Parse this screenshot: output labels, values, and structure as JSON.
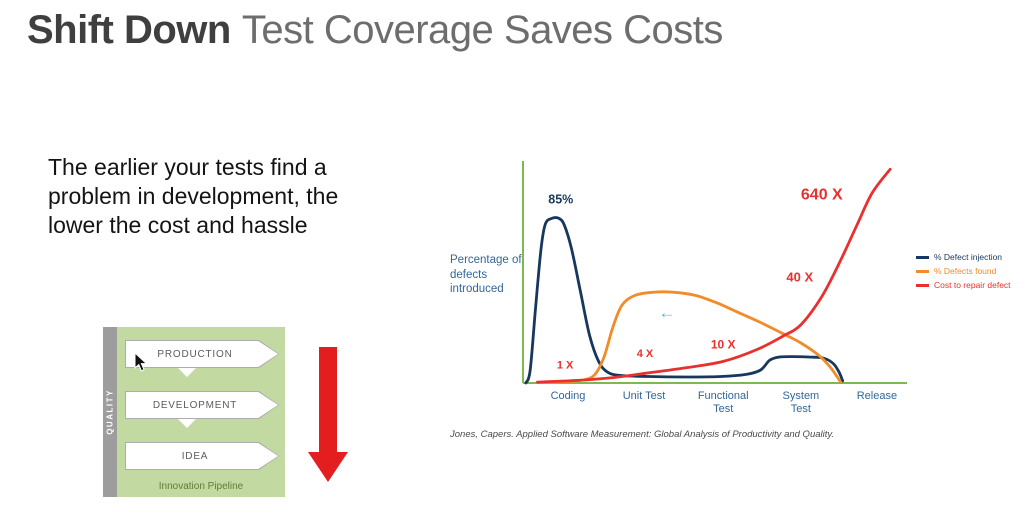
{
  "slide": {
    "title_bold": "Shift Down",
    "title_rest": "Test Coverage Saves Costs",
    "body_lines": [
      "The earlier your tests find a",
      "problem in development, the",
      "lower the cost and hassle"
    ]
  },
  "pipeline": {
    "quality_label": "QUALITY",
    "stages": [
      "PRODUCTION",
      "DEVELOPMENT",
      "IDEA"
    ],
    "caption": "Innovation Pipeline"
  },
  "chart": {
    "y_axis_label": "Percentage of defects introduced",
    "axis_color": "#7cb950",
    "label_color": "#336699",
    "citation": "Jones, Capers. Applied Software Measurement: Global Analysis of Productivity and Quality."
  },
  "chart_data": {
    "type": "line",
    "title": "",
    "x_categories": [
      "Coding",
      "Unit Test",
      "Functional Test",
      "System Test",
      "Release"
    ],
    "y_scale": "normalized 0-1 of plot height (y axis has no numeric ticks)",
    "legend_position": "right",
    "defect_injection_peak": "85%",
    "cost_multipliers": {
      "Coding": "1 X",
      "Unit Test": "4 X",
      "Functional Test": "10 X",
      "System Test": "40 X",
      "Release": "640 X"
    },
    "x_axis": [
      {
        "x": 0.125,
        "lines": [
          "Coding"
        ]
      },
      {
        "x": 0.336,
        "lines": [
          "Unit Test"
        ]
      },
      {
        "x": 0.556,
        "lines": [
          "Functional",
          "Test"
        ]
      },
      {
        "x": 0.772,
        "lines": [
          "System",
          "Test"
        ]
      },
      {
        "x": 0.983,
        "lines": [
          "Release"
        ]
      }
    ],
    "series": [
      {
        "name": "% Defect injection",
        "color": "#17375e",
        "points": [
          [
            0.008,
            0.0
          ],
          [
            0.02,
            0.06
          ],
          [
            0.035,
            0.35
          ],
          [
            0.05,
            0.62
          ],
          [
            0.062,
            0.735
          ],
          [
            0.08,
            0.762
          ],
          [
            0.1,
            0.762
          ],
          [
            0.115,
            0.73
          ],
          [
            0.135,
            0.62
          ],
          [
            0.16,
            0.42
          ],
          [
            0.185,
            0.22
          ],
          [
            0.21,
            0.1
          ],
          [
            0.235,
            0.05
          ],
          [
            0.27,
            0.035
          ],
          [
            0.35,
            0.03
          ],
          [
            0.45,
            0.028
          ],
          [
            0.55,
            0.03
          ],
          [
            0.62,
            0.04
          ],
          [
            0.66,
            0.06
          ],
          [
            0.685,
            0.105
          ],
          [
            0.71,
            0.12
          ],
          [
            0.75,
            0.122
          ],
          [
            0.8,
            0.12
          ],
          [
            0.835,
            0.115
          ],
          [
            0.862,
            0.09
          ],
          [
            0.878,
            0.05
          ],
          [
            0.888,
            0.01
          ]
        ]
      },
      {
        "name": "% Defects found",
        "color": "#f08c2a",
        "points": [
          [
            0.05,
            0.002
          ],
          [
            0.12,
            0.006
          ],
          [
            0.17,
            0.015
          ],
          [
            0.2,
            0.04
          ],
          [
            0.225,
            0.12
          ],
          [
            0.25,
            0.26
          ],
          [
            0.275,
            0.36
          ],
          [
            0.31,
            0.405
          ],
          [
            0.36,
            0.42
          ],
          [
            0.42,
            0.42
          ],
          [
            0.48,
            0.405
          ],
          [
            0.54,
            0.37
          ],
          [
            0.6,
            0.325
          ],
          [
            0.66,
            0.28
          ],
          [
            0.72,
            0.23
          ],
          [
            0.772,
            0.185
          ],
          [
            0.82,
            0.13
          ],
          [
            0.85,
            0.08
          ],
          [
            0.87,
            0.035
          ],
          [
            0.882,
            0.005
          ]
        ]
      },
      {
        "name": "Cost to repair defect",
        "color": "#e8312e",
        "points": [
          [
            0.04,
            0.004
          ],
          [
            0.15,
            0.012
          ],
          [
            0.25,
            0.025
          ],
          [
            0.34,
            0.045
          ],
          [
            0.45,
            0.07
          ],
          [
            0.556,
            0.1
          ],
          [
            0.65,
            0.155
          ],
          [
            0.72,
            0.215
          ],
          [
            0.772,
            0.27
          ],
          [
            0.83,
            0.4
          ],
          [
            0.88,
            0.56
          ],
          [
            0.93,
            0.74
          ],
          [
            0.97,
            0.88
          ],
          [
            1.02,
            0.99
          ]
        ]
      }
    ],
    "annotations": [
      {
        "name": "label-85-percent",
        "text": "85%",
        "x": 0.105,
        "y": 0.83,
        "color": "#17375e",
        "size": 12.5
      },
      {
        "name": "label-1x",
        "text": "1 X",
        "x": 0.117,
        "y": 0.068,
        "color": "#e8312e",
        "size": 11
      },
      {
        "name": "label-4x",
        "text": "4 X",
        "x": 0.339,
        "y": 0.12,
        "color": "#e8312e",
        "size": 11
      },
      {
        "name": "label-10x",
        "text": "10 X",
        "x": 0.556,
        "y": 0.16,
        "color": "#e8312e",
        "size": 12
      },
      {
        "name": "label-40x",
        "text": "40 X",
        "x": 0.769,
        "y": 0.47,
        "color": "#e8312e",
        "size": 13
      },
      {
        "name": "label-640x",
        "text": "640 X",
        "x": 0.83,
        "y": 0.85,
        "color": "#e8312e",
        "size": 16
      },
      {
        "name": "shift-left-arrow",
        "text": "←",
        "x": 0.4,
        "y": 0.3,
        "color": "#58b7e8",
        "size": 17,
        "weight": 400
      }
    ]
  }
}
